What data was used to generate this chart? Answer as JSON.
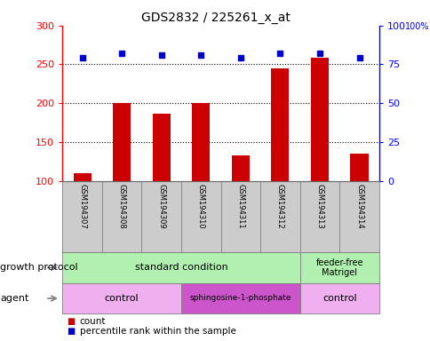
{
  "title": "GDS2832 / 225261_x_at",
  "samples": [
    "GSM194307",
    "GSM194308",
    "GSM194309",
    "GSM194310",
    "GSM194311",
    "GSM194312",
    "GSM194313",
    "GSM194314"
  ],
  "counts": [
    110,
    200,
    186,
    200,
    133,
    245,
    258,
    135
  ],
  "percentile_ranks": [
    79,
    82,
    81,
    81,
    79,
    82,
    82,
    79
  ],
  "ylim_left": [
    100,
    300
  ],
  "ylim_right": [
    0,
    100
  ],
  "yticks_left": [
    100,
    150,
    200,
    250,
    300
  ],
  "yticks_right": [
    0,
    25,
    50,
    75,
    100
  ],
  "bar_color": "#cc0000",
  "dot_color": "#0000cc",
  "grid_yticks": [
    150,
    200,
    250
  ],
  "growth_protocol_std_color": "#b2f0b2",
  "growth_protocol_ff_color": "#b2f0b2",
  "agent_control_color": "#f0b0f0",
  "agent_sph_color": "#cc55cc",
  "sample_box_color": "#cccccc",
  "growth_std_n": 6,
  "agent_ctrl1_n": 3,
  "agent_sph_n": 3,
  "agent_ctrl2_n": 2
}
